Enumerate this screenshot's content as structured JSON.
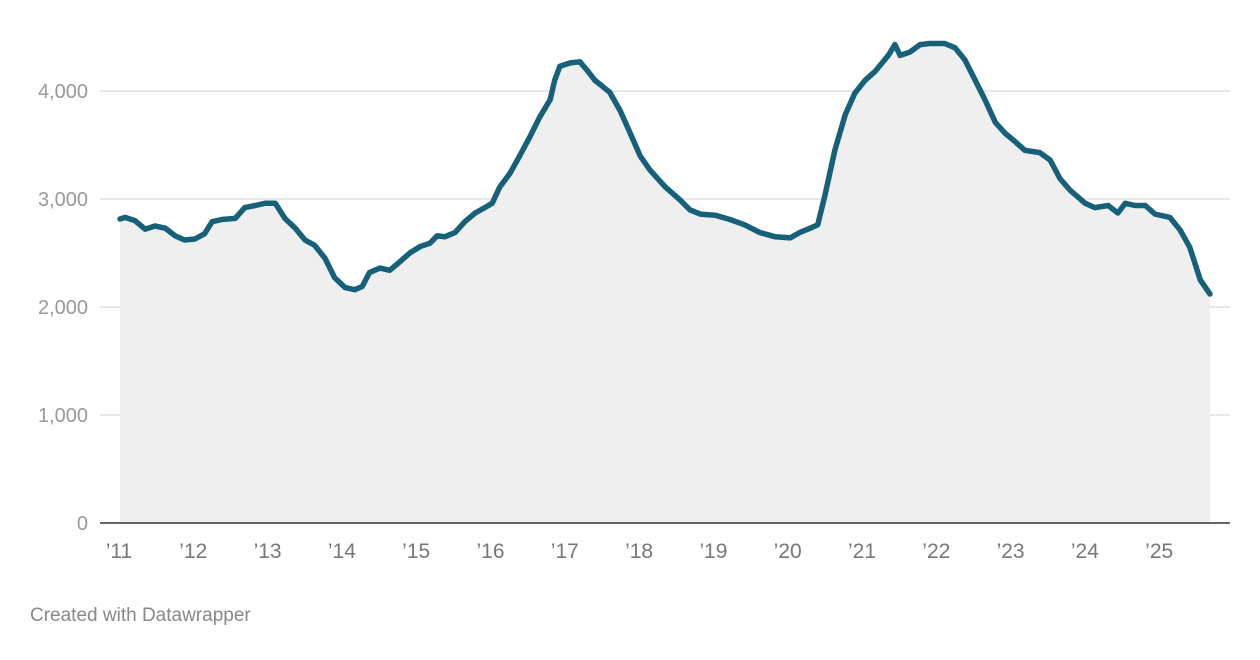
{
  "chart_data": {
    "type": "area",
    "title": "",
    "xlabel": "",
    "ylabel": "",
    "ylim": [
      0,
      4500
    ],
    "xlim": [
      2011,
      2025.67
    ],
    "grid": true,
    "y_ticks": [
      0,
      1000,
      2000,
      3000,
      4000
    ],
    "y_tick_labels": [
      "0",
      "1,000",
      "2,000",
      "3,000",
      "4,000"
    ],
    "x_ticks": [
      2011,
      2012,
      2013,
      2014,
      2015,
      2016,
      2017,
      2018,
      2019,
      2020,
      2021,
      2022,
      2023,
      2024,
      2025
    ],
    "x_tick_labels": [
      "’11",
      "’12",
      "’13",
      "’14",
      "’15",
      "’16",
      "’17",
      "’18",
      "’19",
      "’20",
      "’21",
      "’22",
      "’23",
      "’24",
      "’25"
    ],
    "line_color": "#17607a",
    "fill_color": "#efefef",
    "series": [
      {
        "x": [
          2011.0,
          2011.07,
          2011.2,
          2011.34,
          2011.47,
          2011.61,
          2011.74,
          2011.87,
          2012.01,
          2012.14,
          2012.24,
          2012.37,
          2012.55,
          2012.68,
          2012.82,
          2012.95,
          2013.09,
          2013.22,
          2013.36,
          2013.49,
          2013.62,
          2013.76,
          2013.89,
          2014.03,
          2014.16,
          2014.26,
          2014.36,
          2014.5,
          2014.63,
          2014.77,
          2014.9,
          2015.04,
          2015.17,
          2015.27,
          2015.37,
          2015.51,
          2015.64,
          2015.78,
          2015.91,
          2016.01,
          2016.11,
          2016.25,
          2016.38,
          2016.52,
          2016.65,
          2016.79,
          2016.85,
          2016.92,
          2017.06,
          2017.19,
          2017.29,
          2017.39,
          2017.59,
          2017.73,
          2017.86,
          2018.0,
          2018.13,
          2018.34,
          2018.54,
          2018.67,
          2018.81,
          2019.01,
          2019.21,
          2019.41,
          2019.61,
          2019.82,
          2020.02,
          2020.15,
          2020.29,
          2020.39,
          2020.49,
          2020.62,
          2020.76,
          2020.89,
          2021.03,
          2021.16,
          2021.34,
          2021.43,
          2021.5,
          2021.63,
          2021.77,
          2021.9,
          2022.1,
          2022.24,
          2022.37,
          2022.51,
          2022.64,
          2022.78,
          2022.91,
          2023.05,
          2023.18,
          2023.38,
          2023.52,
          2023.65,
          2023.79,
          2023.99,
          2024.12,
          2024.3,
          2024.43,
          2024.53,
          2024.66,
          2024.8,
          2024.93,
          2025.13,
          2025.27,
          2025.4,
          2025.54,
          2025.67
        ],
        "y": [
          2815,
          2830,
          2800,
          2720,
          2750,
          2730,
          2660,
          2620,
          2630,
          2680,
          2790,
          2810,
          2820,
          2920,
          2940,
          2960,
          2960,
          2820,
          2730,
          2620,
          2570,
          2450,
          2270,
          2180,
          2160,
          2190,
          2320,
          2360,
          2340,
          2420,
          2500,
          2560,
          2590,
          2660,
          2650,
          2690,
          2790,
          2870,
          2920,
          2960,
          3110,
          3240,
          3400,
          3580,
          3760,
          3920,
          4100,
          4230,
          4260,
          4270,
          4190,
          4100,
          3990,
          3820,
          3620,
          3400,
          3270,
          3110,
          2990,
          2900,
          2860,
          2850,
          2810,
          2760,
          2690,
          2650,
          2640,
          2690,
          2730,
          2760,
          3040,
          3450,
          3780,
          3980,
          4100,
          4180,
          4330,
          4430,
          4330,
          4360,
          4430,
          4440,
          4440,
          4400,
          4290,
          4100,
          3920,
          3710,
          3610,
          3530,
          3450,
          3430,
          3360,
          3190,
          3080,
          2960,
          2920,
          2940,
          2870,
          2960,
          2940,
          2940,
          2860,
          2830,
          2710,
          2550,
          2250,
          2120
        ]
      }
    ]
  },
  "footer": "Created with Datawrapper"
}
